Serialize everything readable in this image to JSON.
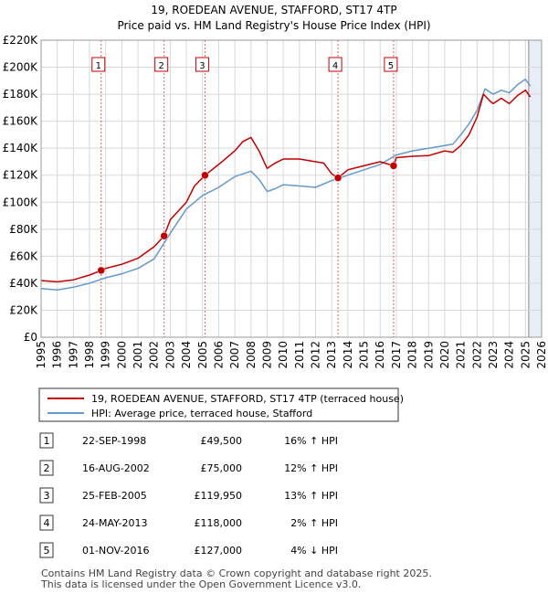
{
  "title_line1": "19, ROEDEAN AVENUE, STAFFORD, ST17 4TP",
  "title_line2": "Price paid vs. HM Land Registry's House Price Index (HPI)",
  "legend": {
    "property": "19, ROEDEAN AVENUE, STAFFORD, ST17 4TP (terraced house)",
    "hpi": "HPI: Average price, terraced house, Stafford"
  },
  "colors": {
    "property_line": "#c00000",
    "hpi_line": "#6699cc",
    "marker_line": "#e06060",
    "shade": "#e8eef8",
    "grid": "#d8d8d8"
  },
  "transactions": [
    {
      "num": "1",
      "date": "22-SEP-1998",
      "price": "£49,500",
      "hpi": "16% ↑ HPI"
    },
    {
      "num": "2",
      "date": "16-AUG-2002",
      "price": "£75,000",
      "hpi": "12% ↑ HPI"
    },
    {
      "num": "3",
      "date": "25-FEB-2005",
      "price": "£119,950",
      "hpi": "13% ↑ HPI"
    },
    {
      "num": "4",
      "date": "24-MAY-2013",
      "price": "£118,000",
      "hpi": "2% ↑ HPI"
    },
    {
      "num": "5",
      "date": "01-NOV-2016",
      "price": "£127,000",
      "hpi": "4% ↓ HPI"
    }
  ],
  "footer_line1": "Contains HM Land Registry data © Crown copyright and database right 2025.",
  "footer_line2": "This data is licensed under the Open Government Licence v3.0.",
  "chart_data": {
    "type": "line",
    "title": "19, ROEDEAN AVENUE, STAFFORD, ST17 4TP — Price paid vs. HM Land Registry's House Price Index (HPI)",
    "xlim": [
      1995,
      2026
    ],
    "ylim": [
      0,
      220000
    ],
    "x_ticks": [
      1995,
      1996,
      1997,
      1998,
      1999,
      2000,
      2001,
      2002,
      2003,
      2004,
      2005,
      2006,
      2007,
      2008,
      2009,
      2010,
      2011,
      2012,
      2013,
      2014,
      2015,
      2016,
      2017,
      2018,
      2019,
      2020,
      2021,
      2022,
      2023,
      2024,
      2025,
      2026
    ],
    "y_ticks": [
      0,
      20000,
      40000,
      60000,
      80000,
      100000,
      120000,
      140000,
      160000,
      180000,
      200000,
      220000
    ],
    "y_tick_labels": [
      "£0",
      "£20K",
      "£40K",
      "£60K",
      "£80K",
      "£100K",
      "£120K",
      "£140K",
      "£160K",
      "£180K",
      "£200K",
      "£220K"
    ],
    "shaded_ranges": [
      [
        2025.2,
        2026
      ]
    ],
    "sales": [
      {
        "label": "1",
        "x": 1998.72,
        "y": 49500
      },
      {
        "label": "2",
        "x": 2002.62,
        "y": 75000
      },
      {
        "label": "3",
        "x": 2005.15,
        "y": 119950
      },
      {
        "label": "4",
        "x": 2013.39,
        "y": 118000
      },
      {
        "label": "5",
        "x": 2016.83,
        "y": 127000
      }
    ],
    "series": [
      {
        "name": "19, ROEDEAN AVENUE, STAFFORD, ST17 4TP (terraced house)",
        "x": [
          1995,
          1996,
          1997,
          1998,
          1998.72,
          1999,
          2000,
          2001,
          2002,
          2002.62,
          2003,
          2004,
          2004.5,
          2005.15,
          2006,
          2007,
          2007.5,
          2008,
          2008.5,
          2009,
          2009.5,
          2010,
          2011,
          2012,
          2012.5,
          2013,
          2013.39,
          2014,
          2015,
          2016,
          2016.83,
          2017,
          2018,
          2019,
          2020,
          2020.5,
          2021,
          2021.5,
          2022,
          2022.4,
          2022.8,
          2023,
          2023.5,
          2024,
          2024.5,
          2025,
          2025.3
        ],
        "y": [
          42000,
          41000,
          42500,
          46000,
          49500,
          51000,
          54000,
          58500,
          67000,
          75000,
          87000,
          100000,
          112000,
          119950,
          128000,
          138000,
          145000,
          148000,
          138000,
          125000,
          129000,
          132000,
          132000,
          130000,
          129000,
          121000,
          118000,
          124000,
          127000,
          130000,
          127000,
          133000,
          134000,
          134500,
          138000,
          137000,
          142000,
          150000,
          163000,
          180000,
          175000,
          173000,
          177000,
          173000,
          179000,
          183000,
          178000
        ]
      },
      {
        "name": "HPI: Average price, terraced house, Stafford",
        "x": [
          1995,
          1996,
          1997,
          1998,
          1999,
          2000,
          2001,
          2002,
          2003,
          2004,
          2005,
          2006,
          2007,
          2008,
          2008.5,
          2009,
          2009.5,
          2010,
          2011,
          2012,
          2013,
          2014,
          2015,
          2016,
          2017,
          2018,
          2019,
          2020,
          2020.5,
          2021,
          2021.5,
          2022,
          2022.5,
          2023,
          2023.5,
          2024,
          2024.5,
          2025,
          2025.3
        ],
        "y": [
          36000,
          35000,
          37000,
          40000,
          44000,
          47000,
          51000,
          58000,
          77000,
          95000,
          105000,
          111000,
          119000,
          123000,
          117000,
          108000,
          110000,
          113000,
          112000,
          111000,
          116000,
          120000,
          124000,
          128000,
          135000,
          138000,
          140000,
          142000,
          143000,
          150000,
          158000,
          168000,
          184000,
          180000,
          183000,
          181000,
          187000,
          191000,
          186000
        ]
      }
    ]
  }
}
